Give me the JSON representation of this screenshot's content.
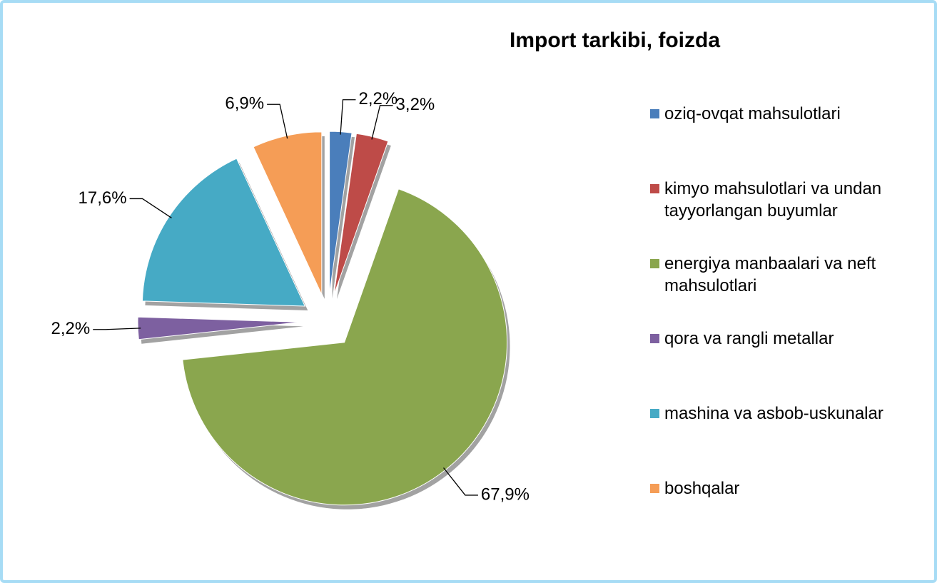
{
  "chart_data": {
    "type": "pie",
    "title": "Import tarkibi, foizda",
    "categories": [
      "oziq-ovqat mahsulotlari",
      "kimyo mahsulotlari va undan tayyorlangan buyumlar",
      "energiya manbaalari va neft mahsulotlari",
      "qora va rangli metallar",
      "mashina va asbob-uskunalar",
      "boshqalar"
    ],
    "values": [
      2.2,
      3.2,
      67.9,
      2.2,
      17.6,
      6.9
    ],
    "value_labels": [
      "2,2%",
      "3,2%",
      "67,9%",
      "2,2%",
      "17,6%",
      "6,9%"
    ],
    "colors": [
      "#4a7ebb",
      "#be4b48",
      "#8aa64e",
      "#7d60a0",
      "#46aac5",
      "#f59d56"
    ],
    "legend": "right"
  }
}
